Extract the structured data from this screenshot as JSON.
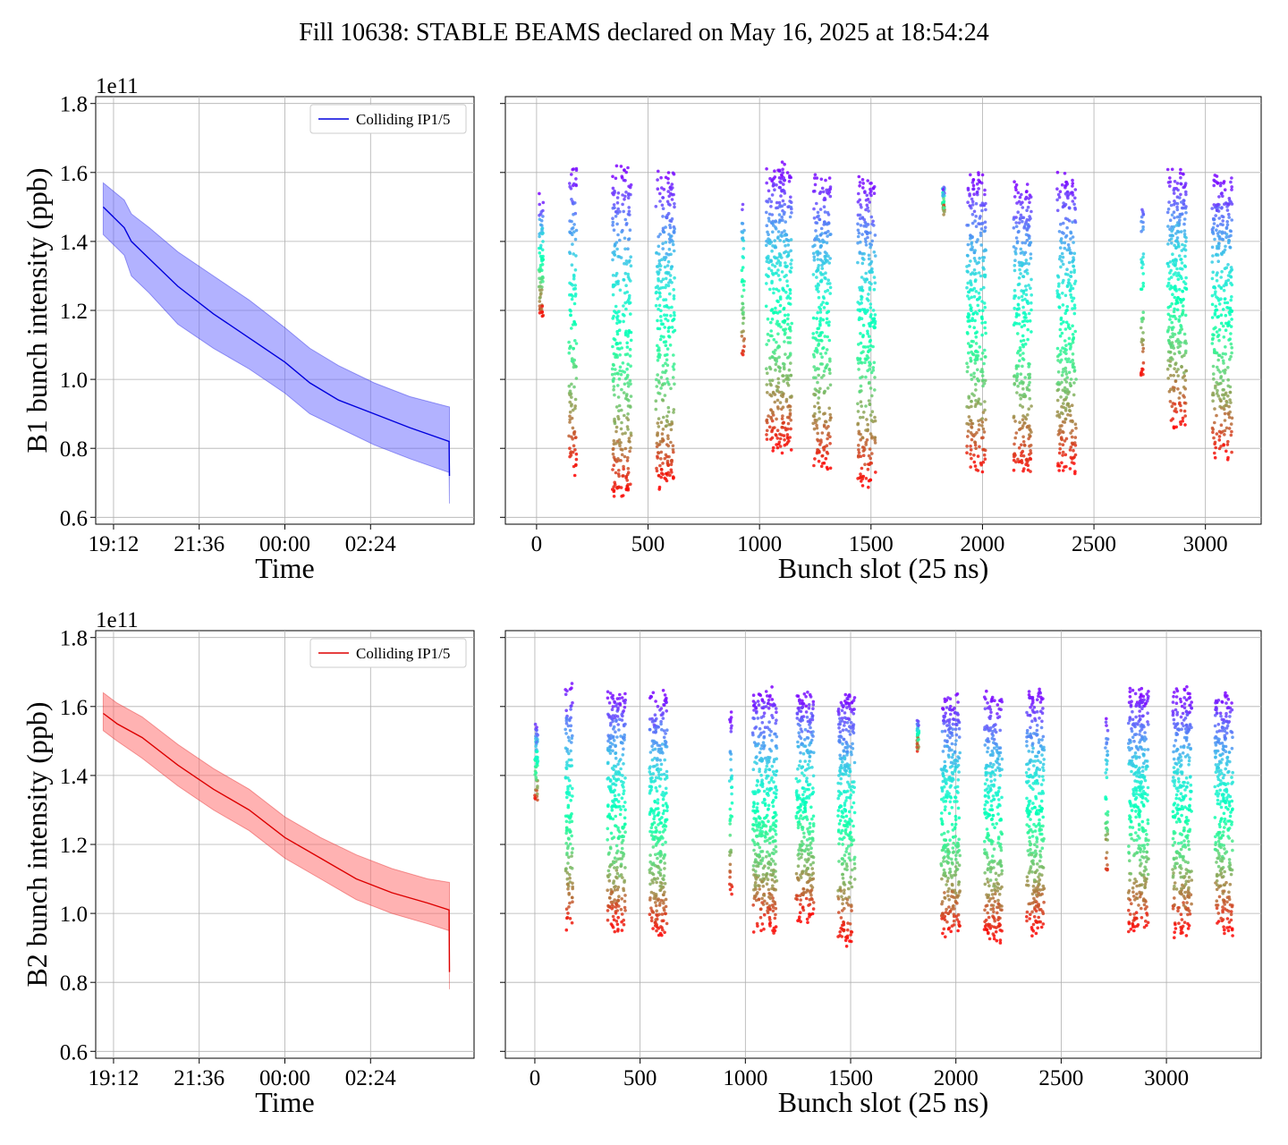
{
  "figure": {
    "title": "Fill 10638: STABLE BEAMS declared on May 16, 2025 at 18:54:24"
  },
  "chart_data": [
    {
      "type": "area",
      "panel": "top-left",
      "ylabel": "B1 bunch intensity (ppb)",
      "xlabel": "Time",
      "y_offset_label": "1e11",
      "ylim": [
        0.58,
        1.82
      ],
      "yticks": [
        "0.6",
        "0.8",
        "1.0",
        "1.2",
        "1.4",
        "1.6",
        "1.8"
      ],
      "xlim_hours": [
        18.7,
        5.3
      ],
      "xticks": [
        "19:12",
        "21:36",
        "00:00",
        "02:24"
      ],
      "grid": true,
      "legend": {
        "position": "top-right",
        "label": "Colliding IP1/5"
      },
      "color": "#0000dd",
      "fill_color": "#6666ff",
      "series": [
        {
          "name": "Colliding IP1/5",
          "x_hours": [
            18.91,
            19.5,
            19.7,
            20.2,
            21.0,
            22.0,
            23.0,
            24.0,
            24.7,
            25.5,
            26.5,
            27.5,
            28.6,
            28.61
          ],
          "mean": [
            1.5,
            1.44,
            1.4,
            1.35,
            1.27,
            1.19,
            1.12,
            1.05,
            0.99,
            0.94,
            0.9,
            0.86,
            0.82,
            0.72
          ],
          "upper": [
            1.57,
            1.52,
            1.48,
            1.44,
            1.37,
            1.3,
            1.23,
            1.15,
            1.09,
            1.04,
            0.99,
            0.95,
            0.92,
            0.92
          ],
          "lower": [
            1.42,
            1.36,
            1.3,
            1.25,
            1.16,
            1.09,
            1.03,
            0.96,
            0.9,
            0.86,
            0.81,
            0.77,
            0.73,
            0.64
          ]
        }
      ]
    },
    {
      "type": "scatter",
      "panel": "top-right",
      "xlabel": "Bunch slot (25 ns)",
      "ylim": [
        0.58,
        1.82
      ],
      "xlim": [
        -140,
        3250
      ],
      "xticks": [
        "0",
        "500",
        "1000",
        "1500",
        "2000",
        "2500",
        "3000"
      ],
      "grid": true,
      "colormap": "rainbow",
      "trains": [
        {
          "start": 10,
          "width": 20,
          "top": 1.52,
          "bottom": 1.18
        },
        {
          "start": 145,
          "width": 35,
          "top": 1.62,
          "bottom": 0.74
        },
        {
          "start": 340,
          "width": 85,
          "top": 1.61,
          "bottom": 0.66
        },
        {
          "start": 535,
          "width": 85,
          "top": 1.6,
          "bottom": 0.69
        },
        {
          "start": 920,
          "width": 12,
          "top": 1.55,
          "bottom": 1.05
        },
        {
          "start": 1030,
          "width": 115,
          "top": 1.61,
          "bottom": 0.8
        },
        {
          "start": 1240,
          "width": 80,
          "top": 1.59,
          "bottom": 0.74
        },
        {
          "start": 1440,
          "width": 80,
          "top": 1.58,
          "bottom": 0.7
        },
        {
          "start": 1820,
          "width": 10,
          "top": 1.56,
          "bottom": 1.48
        },
        {
          "start": 1930,
          "width": 85,
          "top": 1.59,
          "bottom": 0.73
        },
        {
          "start": 2140,
          "width": 80,
          "top": 1.57,
          "bottom": 0.73
        },
        {
          "start": 2335,
          "width": 85,
          "top": 1.59,
          "bottom": 0.74
        },
        {
          "start": 2710,
          "width": 12,
          "top": 1.55,
          "bottom": 1.0
        },
        {
          "start": 2830,
          "width": 85,
          "top": 1.61,
          "bottom": 0.86
        },
        {
          "start": 3030,
          "width": 90,
          "top": 1.59,
          "bottom": 0.77
        }
      ]
    },
    {
      "type": "area",
      "panel": "bottom-left",
      "ylabel": "B2 bunch intensity (ppb)",
      "xlabel": "Time",
      "y_offset_label": "1e11",
      "ylim": [
        0.58,
        1.82
      ],
      "yticks": [
        "0.6",
        "0.8",
        "1.0",
        "1.2",
        "1.4",
        "1.6",
        "1.8"
      ],
      "xlim_hours": [
        18.7,
        5.3
      ],
      "xticks": [
        "19:12",
        "21:36",
        "00:00",
        "02:24"
      ],
      "grid": true,
      "legend": {
        "position": "top-right",
        "label": "Colliding IP1/5"
      },
      "color": "#dd0000",
      "fill_color": "#ff6666",
      "series": [
        {
          "name": "Colliding IP1/5",
          "x_hours": [
            18.91,
            19.3,
            20.0,
            21.0,
            22.0,
            23.0,
            24.0,
            25.0,
            26.0,
            27.0,
            28.0,
            28.6,
            28.61
          ],
          "mean": [
            1.58,
            1.55,
            1.51,
            1.43,
            1.36,
            1.3,
            1.22,
            1.16,
            1.1,
            1.06,
            1.03,
            1.01,
            0.83
          ],
          "upper": [
            1.64,
            1.61,
            1.57,
            1.49,
            1.42,
            1.36,
            1.28,
            1.22,
            1.17,
            1.13,
            1.1,
            1.09,
            1.09
          ],
          "lower": [
            1.53,
            1.5,
            1.45,
            1.37,
            1.3,
            1.24,
            1.16,
            1.1,
            1.04,
            1.0,
            0.97,
            0.95,
            0.78
          ]
        }
      ]
    },
    {
      "type": "scatter",
      "panel": "bottom-right",
      "xlabel": "Bunch slot (25 ns)",
      "ylim": [
        0.58,
        1.82
      ],
      "xlim": [
        -140,
        3450
      ],
      "xticks": [
        "0",
        "500",
        "1000",
        "1500",
        "2000",
        "2500",
        "3000"
      ],
      "grid": true,
      "colormap": "rainbow",
      "trains": [
        {
          "start": 0,
          "width": 15,
          "top": 1.56,
          "bottom": 1.32
        },
        {
          "start": 145,
          "width": 35,
          "top": 1.66,
          "bottom": 0.95
        },
        {
          "start": 345,
          "width": 85,
          "top": 1.64,
          "bottom": 0.95
        },
        {
          "start": 545,
          "width": 85,
          "top": 1.64,
          "bottom": 0.93
        },
        {
          "start": 925,
          "width": 12,
          "top": 1.57,
          "bottom": 1.05
        },
        {
          "start": 1035,
          "width": 115,
          "top": 1.64,
          "bottom": 0.95
        },
        {
          "start": 1240,
          "width": 85,
          "top": 1.64,
          "bottom": 0.98
        },
        {
          "start": 1440,
          "width": 80,
          "top": 1.63,
          "bottom": 0.92
        },
        {
          "start": 1815,
          "width": 10,
          "top": 1.56,
          "bottom": 1.48
        },
        {
          "start": 1930,
          "width": 90,
          "top": 1.63,
          "bottom": 0.94
        },
        {
          "start": 2135,
          "width": 85,
          "top": 1.63,
          "bottom": 0.93
        },
        {
          "start": 2335,
          "width": 85,
          "top": 1.64,
          "bottom": 0.95
        },
        {
          "start": 2710,
          "width": 12,
          "top": 1.58,
          "bottom": 1.1
        },
        {
          "start": 2820,
          "width": 95,
          "top": 1.64,
          "bottom": 0.95
        },
        {
          "start": 3030,
          "width": 90,
          "top": 1.64,
          "bottom": 0.94
        },
        {
          "start": 3230,
          "width": 85,
          "top": 1.63,
          "bottom": 0.95
        }
      ]
    }
  ]
}
